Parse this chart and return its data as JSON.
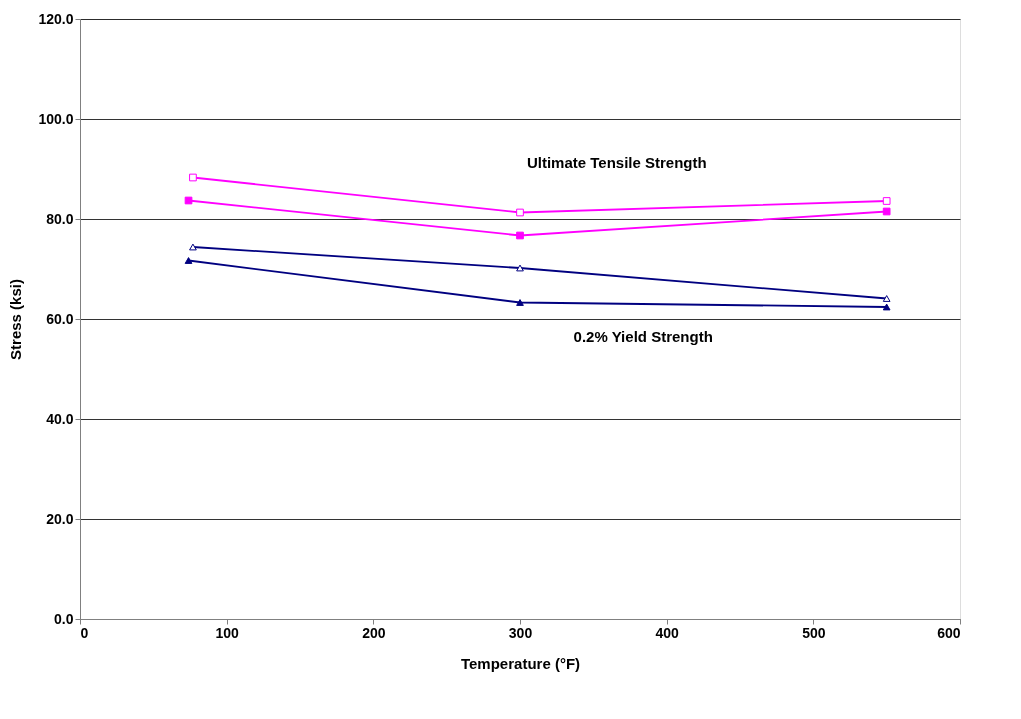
{
  "chart_data": {
    "type": "line",
    "xlabel": "Temperature (°F)",
    "ylabel": "Stress (ksi)",
    "xlim": [
      0,
      600
    ],
    "xticks": [
      0,
      100,
      200,
      300,
      400,
      500,
      600
    ],
    "ylim": [
      0,
      120
    ],
    "yticks": [
      {
        "value": 0,
        "label": "0.0"
      },
      {
        "value": 20,
        "label": "20.0"
      },
      {
        "value": 40,
        "label": "40.0"
      },
      {
        "value": 60,
        "label": "60.0"
      },
      {
        "value": 80,
        "label": "80.0"
      },
      {
        "value": 100,
        "label": "100.0"
      },
      {
        "value": 120,
        "label": "120.0"
      }
    ],
    "grid": "y",
    "line_style": "solid",
    "series": [
      {
        "color": "#ff00ff",
        "marker": "square",
        "x": [
          77,
          300,
          550
        ],
        "values": [
          88.3,
          81.3,
          83.6
        ]
      },
      {
        "color": "#ff00ff",
        "marker": "square",
        "x": [
          74,
          300,
          550
        ],
        "values": [
          83.7,
          76.7,
          81.5
        ]
      },
      {
        "color": "#000080",
        "marker": "triangle",
        "x": [
          77,
          300,
          550
        ],
        "values": [
          74.4,
          70.2,
          64.1
        ]
      },
      {
        "color": "#000080",
        "marker": "triangle",
        "x": [
          74,
          300,
          550
        ],
        "values": [
          71.7,
          63.3,
          62.4
        ]
      }
    ],
    "annotations": [
      "Ultimate Tensile Strength",
      "0.2% Yield Strength"
    ]
  }
}
